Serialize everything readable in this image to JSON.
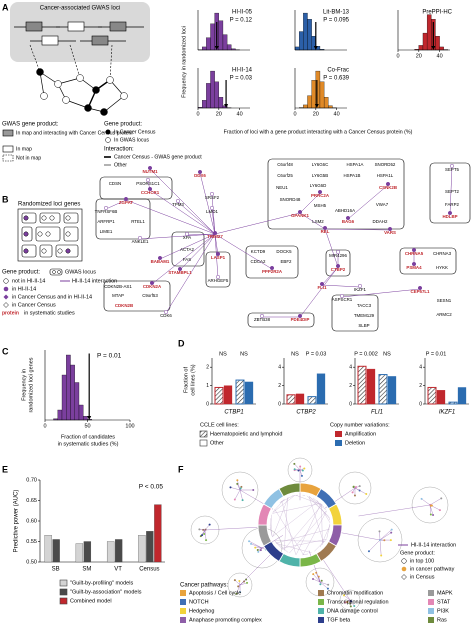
{
  "panel_labels": [
    "A",
    "B",
    "C",
    "D",
    "E",
    "F"
  ],
  "panel_a": {
    "diagram_title": "Cancer-associated GWAS loci",
    "legend": {
      "gwas_title": "GWAS gene product:",
      "gwas_items": [
        "In map and interacting with Cancer Census protein",
        "In map",
        "Not in map"
      ],
      "gene_title": "Gene product:",
      "gene_items": [
        "In Cancer Census",
        "In GWAS locus"
      ],
      "interaction_title": "Interaction:",
      "interaction_items": [
        "Cancer Census - GWAS gene product",
        "Other"
      ]
    }
  },
  "panel_b": {
    "title": "Randomized loci genes",
    "legend": {
      "gene_title": "Gene product:",
      "gwas_locus": "GWAS locus",
      "items": [
        "not in HI-II-14",
        "in HI-II-14",
        "in Cancer Census and in HI-II-14",
        "in Cancer Census"
      ],
      "interaction": "HI-II-14 interaction",
      "systematic_word": "protein",
      "systematic": "in systematic studies"
    },
    "nodes": [
      {
        "label": "NUTM1",
        "color": "#c0272d"
      },
      {
        "label": "DDX6",
        "color": "#c0272d"
      },
      {
        "label": "CDSN",
        "color": "#000000"
      },
      {
        "label": "PSORS1C1",
        "color": "#000000"
      },
      {
        "label": "CCHCR1",
        "color": "#c0272d"
      },
      {
        "label": "TNFRSF6B",
        "color": "#000000"
      },
      {
        "label": "ARFRP1",
        "color": "#000000"
      },
      {
        "label": "RTEL1",
        "color": "#000000"
      },
      {
        "label": "LIME1",
        "color": "#000000"
      },
      {
        "label": "ZGPAT",
        "color": "#c0272d"
      },
      {
        "label": "TPM3",
        "color": "#000000"
      },
      {
        "label": "SRSF2",
        "color": "#000000"
      },
      {
        "label": "LMO1",
        "color": "#000000"
      },
      {
        "label": "TRIM27",
        "color": "#c0272d"
      },
      {
        "label": "ANKLE1",
        "color": "#000000"
      },
      {
        "label": "XPA",
        "color": "#000000"
      },
      {
        "label": "ACTA2",
        "color": "#000000"
      },
      {
        "label": "FAS",
        "color": "#000000"
      },
      {
        "label": "BABAM1",
        "color": "#c0272d"
      },
      {
        "label": "STAMBPL1",
        "color": "#c0272d"
      },
      {
        "label": "LASP1",
        "color": "#c0272d"
      },
      {
        "label": "ARHGEF5",
        "color": "#000000"
      },
      {
        "label": "CDKN2B-AS1",
        "color": "#000000"
      },
      {
        "label": "CDKN2A",
        "color": "#c0272d"
      },
      {
        "label": "MTAP",
        "color": "#000000"
      },
      {
        "label": "C9orf53",
        "color": "#000000"
      },
      {
        "label": "CDKN2B",
        "color": "#c0272d"
      },
      {
        "label": "CDK6",
        "color": "#000000"
      },
      {
        "label": "ZBTB38",
        "color": "#000000"
      },
      {
        "label": "PDE4DIP",
        "color": "#c0272d"
      },
      {
        "label": "KCTD9",
        "color": "#000000"
      },
      {
        "label": "DOCK5",
        "color": "#000000"
      },
      {
        "label": "CDCA2",
        "color": "#000000"
      },
      {
        "label": "EBF2",
        "color": "#000000"
      },
      {
        "label": "PPP2R2A",
        "color": "#c0272d"
      },
      {
        "label": "REL",
        "color": "#c0272d"
      },
      {
        "label": "MIR4296",
        "color": "#000000"
      },
      {
        "label": "CTBP2",
        "color": "#c0272d"
      },
      {
        "label": "FLI1",
        "color": "#c0272d"
      },
      {
        "label": "IKZF1",
        "color": "#000000"
      },
      {
        "label": "ASPSCR1",
        "color": "#000000"
      },
      {
        "label": "TACC3",
        "color": "#000000"
      },
      {
        "label": "TMEM129",
        "color": "#000000"
      },
      {
        "label": "SLBP",
        "color": "#000000"
      },
      {
        "label": "C6orf48",
        "color": "#000000"
      },
      {
        "label": "LY6G6C",
        "color": "#000000"
      },
      {
        "label": "HSPA1A",
        "color": "#000000"
      },
      {
        "label": "SNORD52",
        "color": "#000000"
      },
      {
        "label": "C6orf25",
        "color": "#000000"
      },
      {
        "label": "LY6G5B",
        "color": "#000000"
      },
      {
        "label": "HSPA1B",
        "color": "#000000"
      },
      {
        "label": "HSPA1L",
        "color": "#000000"
      },
      {
        "label": "LY6G6D",
        "color": "#000000"
      },
      {
        "label": "PRRC2A",
        "color": "#c0272d"
      },
      {
        "label": "NEU1",
        "color": "#000000"
      },
      {
        "label": "CSNK2B",
        "color": "#c0272d"
      },
      {
        "label": "SNORD48",
        "color": "#000000"
      },
      {
        "label": "MSH5",
        "color": "#000000"
      },
      {
        "label": "VWA7",
        "color": "#000000"
      },
      {
        "label": "GPANK1",
        "color": "#c0272d"
      },
      {
        "label": "ABHD16A",
        "color": "#000000"
      },
      {
        "label": "LSM2",
        "color": "#000000"
      },
      {
        "label": "BAG6",
        "color": "#c0272d"
      },
      {
        "label": "DDAH2",
        "color": "#000000"
      },
      {
        "label": "VARS",
        "color": "#c0272d"
      },
      {
        "label": "SEPT5",
        "color": "#000000"
      },
      {
        "label": "SEPT2",
        "color": "#000000"
      },
      {
        "label": "FARP2",
        "color": "#000000"
      },
      {
        "label": "HDLBP",
        "color": "#c0272d"
      },
      {
        "label": "CHRNA5",
        "color": "#c0272d"
      },
      {
        "label": "CHRNA3",
        "color": "#000000"
      },
      {
        "label": "PSMA4",
        "color": "#c0272d"
      },
      {
        "label": "HYKK",
        "color": "#000000"
      },
      {
        "label": "CEP57L1",
        "color": "#c0272d"
      },
      {
        "label": "SESN1",
        "color": "#000000"
      },
      {
        "label": "ARMC2",
        "color": "#000000"
      }
    ]
  },
  "panel_f": {
    "legend": {
      "interaction": "HI-II-14 interaction",
      "gene_title": "Gene product:",
      "items": [
        "in top 100",
        "in cancer pathway",
        "in Census"
      ]
    },
    "pathways_title": "Cancer pathways:",
    "pathways": [
      {
        "name": "Apoptosis / Cell cycle",
        "color": "#e8a33d"
      },
      {
        "name": "NOTCH",
        "color": "#3f6fb5"
      },
      {
        "name": "Hedgehog",
        "color": "#f2d33b"
      },
      {
        "name": "Anaphase promoting complex",
        "color": "#8e5ea8"
      },
      {
        "name": "Chromatin modification",
        "color": "#a07a50"
      },
      {
        "name": "Transcriptional regulation",
        "color": "#7ab648"
      },
      {
        "name": "DNA damage control",
        "color": "#4fb3a9"
      },
      {
        "name": "TGF beta",
        "color": "#2d3e8c"
      },
      {
        "name": "MAPK",
        "color": "#9a9a9a"
      },
      {
        "name": "STAT",
        "color": "#e387b5"
      },
      {
        "name": "PI3K",
        "color": "#8fc1e3"
      },
      {
        "name": "Ras",
        "color": "#6e8b3d"
      }
    ]
  },
  "chart_data": [
    {
      "type": "histogram_grid",
      "ylabel": "Frequency in randomized loci",
      "xlabel": "Fraction of loci with a gene product interacting with a Cancer Census protein (%)",
      "xlim": [
        0,
        50
      ],
      "xticks": [
        0,
        20,
        40
      ],
      "ylim": [
        0,
        260
      ],
      "histograms": [
        {
          "title": "HI-II-05",
          "annotation": "P = 0.12",
          "color": "#7b3f9e",
          "bins": [
            0,
            4,
            8,
            12,
            16,
            20,
            24,
            28,
            32,
            36,
            40,
            44,
            48
          ],
          "counts": [
            2,
            20,
            80,
            170,
            240,
            190,
            100,
            35,
            8,
            1,
            0,
            0
          ],
          "observed": 18
        },
        {
          "title": "Lit-BM-13",
          "annotation": "P = 0.095",
          "color": "#2b5fa8",
          "bins": [
            0,
            4,
            8,
            12,
            16,
            20,
            24,
            28,
            32,
            36,
            40,
            44,
            48
          ],
          "counts": [
            20,
            120,
            240,
            200,
            90,
            25,
            5,
            0,
            0,
            0,
            0,
            0
          ],
          "observed": 20
        },
        {
          "title": "PrePPI-HC",
          "annotation": null,
          "color": "#c0272d",
          "bins": [
            0,
            4,
            8,
            12,
            16,
            20,
            24,
            28,
            32,
            36,
            40,
            44,
            48
          ],
          "counts": [
            0,
            0,
            0,
            0,
            5,
            30,
            110,
            230,
            200,
            90,
            20,
            3
          ],
          "observed": 34
        },
        {
          "title": "HI-II-14",
          "annotation": "P = 0.03",
          "color": "#7b3f9e",
          "bins": [
            0,
            4,
            8,
            12,
            16,
            20,
            24,
            28,
            32,
            36,
            40,
            44,
            48
          ],
          "counts": [
            5,
            50,
            160,
            240,
            170,
            70,
            15,
            2,
            0,
            0,
            0,
            0
          ],
          "observed": 27
        },
        {
          "title": "Co-Frac",
          "annotation": "P = 0.639",
          "color": "#e08a28",
          "bins": [
            0,
            4,
            8,
            12,
            16,
            20,
            24,
            28,
            32,
            36,
            40,
            44,
            48
          ],
          "counts": [
            0,
            3,
            20,
            80,
            180,
            240,
            170,
            70,
            15,
            2,
            0,
            0
          ],
          "observed": 21
        }
      ]
    },
    {
      "type": "histogram",
      "ylabel": [
        "Frequency in",
        "randomized loci genes"
      ],
      "xlabel": [
        "Fraction of candidates",
        "in systematic studies (%)"
      ],
      "annotation": "P = 0.01",
      "color": "#7b3f9e",
      "xlim": [
        0,
        100
      ],
      "xticks": [
        0,
        50,
        100
      ],
      "ylim": [
        0,
        280
      ],
      "bins": [
        0,
        5,
        10,
        15,
        20,
        25,
        30,
        35,
        40,
        45,
        50,
        55,
        60
      ],
      "counts": [
        0,
        0,
        5,
        40,
        180,
        260,
        220,
        150,
        60,
        15,
        3,
        0
      ],
      "observed": 52
    },
    {
      "type": "grouped_bar_grid",
      "ylabel": [
        "Fraction of",
        "cell lines (%)"
      ],
      "colors": [
        "#c0272d",
        "#c0272d",
        "#2b6cb0",
        "#2b6cb0"
      ],
      "hatched": [
        true,
        false,
        true,
        false
      ],
      "legend": {
        "cell_title": "CCLE cell lines:",
        "cell_items": [
          "Haematopoietic and lymphoid",
          "Other"
        ],
        "cnv_title": "Copy number variations:",
        "cnv_items": [
          "Amplification",
          "Deletion"
        ]
      },
      "panels": [
        {
          "gene": "CTBP1",
          "ylim": [
            0,
            2.5
          ],
          "yticks": [
            0,
            1,
            2
          ],
          "values": [
            0.9,
            1.0,
            1.3,
            1.2
          ],
          "annotations": [
            "NS",
            "NS"
          ]
        },
        {
          "gene": "CTBP2",
          "ylim": [
            0,
            5
          ],
          "yticks": [
            0,
            2,
            4
          ],
          "values": [
            1.0,
            1.1,
            0.8,
            3.3
          ],
          "annotations": [
            "NS",
            "P = 0.03"
          ]
        },
        {
          "gene": "FLI1",
          "ylim": [
            0,
            5
          ],
          "yticks": [
            0,
            2,
            4
          ],
          "values": [
            4.1,
            3.8,
            3.2,
            3.0
          ],
          "annotations": [
            "P = 0.002",
            "NS"
          ]
        },
        {
          "gene": "IKZF1",
          "ylim": [
            0,
            5
          ],
          "yticks": [
            0,
            2,
            4
          ],
          "values": [
            1.8,
            1.5,
            0.2,
            1.8
          ],
          "annotations": [
            "P = 0.01",
            null
          ]
        }
      ]
    },
    {
      "type": "bar",
      "ylabel": "Predictive power (AUC)",
      "annotation": "P < 0.05",
      "categories": [
        "SB",
        "SM",
        "VT",
        "Census"
      ],
      "ylim": [
        0.5,
        0.7
      ],
      "yticks": [
        {
          "value": 0.5,
          "label": "0.50"
        },
        {
          "value": 0.55,
          "label": "0.55"
        },
        {
          "value": 0.6,
          "label": "0.60"
        },
        {
          "value": 0.65,
          "label": "0.65"
        },
        {
          "value": 0.7,
          "label": "0.70"
        }
      ],
      "series": [
        {
          "name": "\"Guilt-by-profiling\" models",
          "color": "#d4d4d4",
          "values": [
            0.565,
            0.545,
            0.55,
            0.565
          ]
        },
        {
          "name": "\"Guilt-by-association\" models",
          "color": "#4a4a4a",
          "values": [
            0.555,
            0.55,
            0.555,
            0.575
          ]
        },
        {
          "name": "Combined model",
          "color": "#c0272d",
          "values": [
            null,
            null,
            null,
            0.64
          ]
        }
      ]
    }
  ]
}
